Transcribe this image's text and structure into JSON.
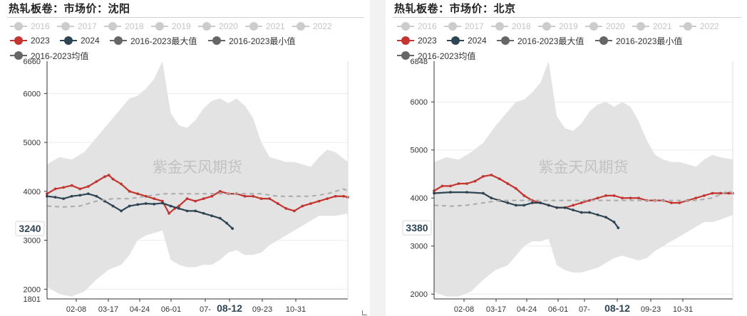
{
  "panels": [
    {
      "title": "热轧板卷：市场价：沈阳",
      "watermark": "紫金天风期货",
      "current_label": "3240",
      "highlight_x": "08-12"
    },
    {
      "title": "热轧板卷：市场价：北京",
      "watermark": "紫金天风期货",
      "current_label": "3380",
      "highlight_x": "08-12"
    }
  ],
  "legend": [
    {
      "name": "2016",
      "color": "#cccccc",
      "state": "hidden"
    },
    {
      "name": "2017",
      "color": "#cccccc",
      "state": "hidden"
    },
    {
      "name": "2018",
      "color": "#cccccc",
      "state": "hidden"
    },
    {
      "name": "2019",
      "color": "#cccccc",
      "state": "hidden"
    },
    {
      "name": "2020",
      "color": "#cccccc",
      "state": "hidden"
    },
    {
      "name": "2021",
      "color": "#cccccc",
      "state": "hidden"
    },
    {
      "name": "2022",
      "color": "#cccccc",
      "state": "hidden"
    },
    {
      "name": "2023",
      "color": "#c23531",
      "state": "visible"
    },
    {
      "name": "2024",
      "color": "#2f4554",
      "state": "visible"
    },
    {
      "name": "2016-2023最大值",
      "color": "#666666",
      "state": "visible"
    },
    {
      "name": "2016-2023最小值",
      "color": "#666666",
      "state": "visible"
    },
    {
      "name": "2016-2023均值",
      "color": "#666666",
      "state": "visible"
    }
  ],
  "chart_data": [
    {
      "type": "line",
      "title": "热轧板卷：市场价：沈阳",
      "x_ticks": [
        "02-08",
        "03-17",
        "04-24",
        "06-01",
        "07-",
        "08-12",
        "09-23",
        "10-31"
      ],
      "y_ticks": [
        2000,
        3000,
        4000,
        5000,
        6000
      ],
      "ylim": [
        1801,
        6660
      ],
      "y_extreme_labels": [
        "1801",
        "6660"
      ],
      "band": {
        "x": [
          0,
          15,
          30,
          45,
          60,
          75,
          90,
          100,
          110,
          120,
          130,
          140,
          150,
          160,
          170,
          180,
          190,
          200,
          210,
          220,
          230,
          240,
          250,
          260,
          270,
          280,
          290,
          300,
          310,
          320,
          330,
          340,
          350,
          365
        ],
        "max": [
          4550,
          4700,
          4650,
          4800,
          5100,
          5400,
          5700,
          5900,
          5950,
          6100,
          6300,
          6660,
          5600,
          5350,
          5300,
          5450,
          5700,
          5850,
          5900,
          5800,
          5900,
          5750,
          5500,
          5000,
          4700,
          4650,
          4600,
          4600,
          4550,
          4500,
          4700,
          4850,
          4800,
          4600
        ],
        "min": [
          2050,
          1900,
          1850,
          1950,
          2200,
          2400,
          2500,
          2700,
          3000,
          3100,
          3150,
          3200,
          2600,
          2500,
          2450,
          2450,
          2500,
          2500,
          2600,
          2750,
          2800,
          2700,
          2700,
          2750,
          2900,
          3000,
          3100,
          3200,
          3300,
          3400,
          3500,
          3500,
          3500,
          3550
        ]
      },
      "series": [
        {
          "name": "2023",
          "color": "#c23531",
          "style": "solid",
          "x": [
            0,
            10,
            20,
            30,
            40,
            50,
            60,
            70,
            75,
            80,
            90,
            100,
            110,
            120,
            130,
            140,
            148,
            155,
            160,
            170,
            180,
            190,
            200,
            210,
            220,
            230,
            240,
            250,
            260,
            270,
            280,
            290,
            300,
            310,
            320,
            330,
            340,
            350,
            360,
            365
          ],
          "y": [
            3950,
            4050,
            4080,
            4120,
            4050,
            4100,
            4200,
            4300,
            4330,
            4250,
            4150,
            4000,
            3950,
            3900,
            3850,
            3800,
            3550,
            3650,
            3700,
            3850,
            3800,
            3850,
            3900,
            4000,
            3950,
            3950,
            3900,
            3900,
            3850,
            3850,
            3750,
            3650,
            3600,
            3700,
            3750,
            3800,
            3850,
            3900,
            3900,
            3880
          ]
        },
        {
          "name": "2024",
          "color": "#2f4554",
          "style": "solid",
          "x": [
            0,
            10,
            20,
            30,
            40,
            50,
            60,
            70,
            80,
            90,
            100,
            110,
            120,
            130,
            140,
            150,
            160,
            170,
            180,
            190,
            200,
            210,
            218,
            225
          ],
          "y": [
            3900,
            3880,
            3850,
            3900,
            3920,
            3950,
            3900,
            3800,
            3700,
            3600,
            3700,
            3730,
            3750,
            3740,
            3760,
            3700,
            3650,
            3600,
            3600,
            3550,
            3500,
            3450,
            3350,
            3240
          ]
        },
        {
          "name": "2016-2023均值",
          "color": "#aaaaaa",
          "style": "dashed",
          "x": [
            0,
            20,
            40,
            60,
            80,
            100,
            120,
            140,
            160,
            180,
            200,
            220,
            240,
            260,
            280,
            300,
            320,
            340,
            360,
            365
          ],
          "y": [
            3700,
            3680,
            3700,
            3800,
            3850,
            3850,
            3900,
            3950,
            3950,
            3950,
            3950,
            3950,
            3950,
            3950,
            3900,
            3900,
            3900,
            3950,
            4050,
            4000
          ]
        }
      ]
    },
    {
      "type": "line",
      "title": "热轧板卷：市场价：北京",
      "x_ticks": [
        "02-08",
        "03-17",
        "04-24",
        "06-01",
        "07-",
        "08-12",
        "09-23",
        "10-31"
      ],
      "y_ticks": [
        2000,
        3000,
        4000,
        5000,
        6000
      ],
      "ylim": [
        1900,
        6848
      ],
      "y_extreme_labels": [
        "6848"
      ],
      "band": {
        "x": [
          0,
          15,
          30,
          45,
          60,
          75,
          90,
          100,
          110,
          120,
          130,
          140,
          150,
          160,
          170,
          180,
          190,
          200,
          210,
          220,
          230,
          240,
          250,
          260,
          270,
          280,
          290,
          300,
          310,
          320,
          330,
          340,
          350,
          365
        ],
        "max": [
          4750,
          4850,
          4800,
          4950,
          5150,
          5500,
          5800,
          6000,
          6050,
          6200,
          6400,
          6848,
          5700,
          5450,
          5400,
          5550,
          5800,
          5950,
          6000,
          5900,
          6000,
          5900,
          5600,
          5200,
          4900,
          4800,
          4750,
          4750,
          4700,
          4650,
          4800,
          4900,
          4850,
          4800
        ],
        "min": [
          2050,
          1950,
          1950,
          2050,
          2300,
          2500,
          2600,
          2800,
          3000,
          3100,
          3100,
          3150,
          2600,
          2500,
          2450,
          2450,
          2500,
          2550,
          2650,
          2750,
          2800,
          2750,
          2700,
          2750,
          2900,
          3000,
          3100,
          3200,
          3300,
          3400,
          3500,
          3500,
          3550,
          3650
        ]
      },
      "series": [
        {
          "name": "2023",
          "color": "#c23531",
          "style": "solid",
          "x": [
            0,
            10,
            20,
            30,
            40,
            50,
            60,
            70,
            80,
            90,
            100,
            110,
            120,
            130,
            140,
            150,
            160,
            170,
            180,
            190,
            200,
            210,
            220,
            230,
            240,
            250,
            260,
            270,
            280,
            290,
            300,
            310,
            320,
            330,
            340,
            350,
            360,
            365
          ],
          "y": [
            4150,
            4250,
            4250,
            4300,
            4300,
            4350,
            4450,
            4480,
            4400,
            4300,
            4200,
            4050,
            3950,
            3900,
            3850,
            3800,
            3800,
            3850,
            3900,
            3950,
            4000,
            4050,
            4050,
            4000,
            4000,
            4000,
            3950,
            3950,
            3950,
            3900,
            3900,
            3950,
            4000,
            4050,
            4100,
            4100,
            4100,
            4100
          ]
        },
        {
          "name": "2024",
          "color": "#2f4554",
          "style": "solid",
          "x": [
            0,
            20,
            40,
            60,
            70,
            80,
            90,
            100,
            110,
            120,
            130,
            140,
            150,
            160,
            170,
            180,
            190,
            200,
            210,
            220,
            225
          ],
          "y": [
            4100,
            4120,
            4120,
            4100,
            4000,
            3950,
            3900,
            3850,
            3850,
            3900,
            3900,
            3850,
            3800,
            3800,
            3750,
            3700,
            3700,
            3650,
            3600,
            3500,
            3380
          ]
        },
        {
          "name": "2016-2023均值",
          "color": "#aaaaaa",
          "style": "dashed",
          "x": [
            0,
            20,
            40,
            60,
            80,
            100,
            120,
            140,
            160,
            180,
            200,
            220,
            240,
            260,
            280,
            300,
            320,
            340,
            360,
            365
          ],
          "y": [
            3850,
            3830,
            3850,
            3900,
            3950,
            3950,
            3950,
            3950,
            3950,
            3950,
            3950,
            3950,
            3950,
            3950,
            3950,
            3950,
            3950,
            4000,
            4150,
            4100
          ]
        }
      ]
    }
  ]
}
